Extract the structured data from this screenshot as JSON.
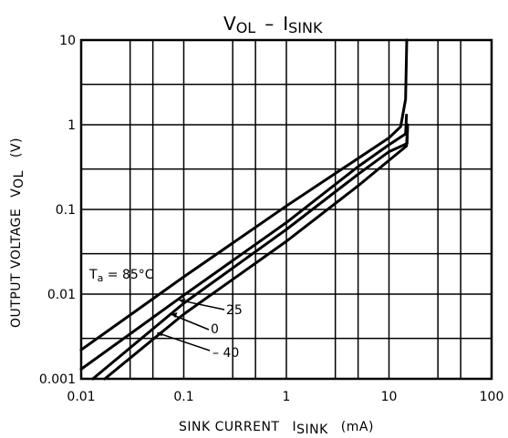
{
  "chart_data": {
    "type": "line",
    "title": {
      "main": "V",
      "sub1": "OL",
      "dash": "–",
      "main2": "I",
      "sub2": "SINK"
    },
    "xlabel": {
      "text": "SINK CURRENT",
      "sym": "I",
      "sub": "SINK",
      "unit": "(mA)"
    },
    "ylabel": {
      "text": "OUTPUT VOLTAGE",
      "sym": "V",
      "sub": "OL",
      "unit": "(V)"
    },
    "xscale": "log",
    "yscale": "log",
    "xlim": [
      0.01,
      100
    ],
    "ylim": [
      0.001,
      10
    ],
    "x_ticks": [
      "0.01",
      "0.1",
      "1",
      "10",
      "100"
    ],
    "y_ticks": [
      "0.001",
      "0.01",
      "0.1",
      "1",
      "10"
    ],
    "grid": true,
    "annotation": {
      "prefix": "T",
      "sub": "a",
      "suffix": " = 85°C"
    },
    "series": [
      {
        "name": "85",
        "points": [
          [
            0.01,
            0.0022
          ],
          [
            0.1,
            0.016
          ],
          [
            1,
            0.11
          ],
          [
            10,
            0.7
          ],
          [
            13,
            0.95
          ],
          [
            14.5,
            2.0
          ],
          [
            14.9,
            10
          ]
        ]
      },
      {
        "name": "25",
        "points": [
          [
            0.01,
            0.0013
          ],
          [
            0.1,
            0.0097
          ],
          [
            1,
            0.07
          ],
          [
            5,
            0.32
          ],
          [
            10,
            0.58
          ],
          [
            14.5,
            0.78
          ],
          [
            14.8,
            1.3
          ]
        ]
      },
      {
        "name": "0",
        "points": [
          [
            0.013,
            0.001
          ],
          [
            0.1,
            0.0078
          ],
          [
            1,
            0.058
          ],
          [
            5,
            0.26
          ],
          [
            10,
            0.48
          ],
          [
            15,
            0.6
          ],
          [
            15.2,
            1.0
          ]
        ]
      },
      {
        "name": "-40",
        "points": [
          [
            0.017,
            0.001
          ],
          [
            0.1,
            0.0058
          ],
          [
            1,
            0.042
          ],
          [
            5,
            0.19
          ],
          [
            10,
            0.38
          ],
          [
            14.8,
            0.56
          ],
          [
            15,
            0.75
          ]
        ]
      }
    ],
    "series_labels": [
      {
        "series": "25",
        "label": "25",
        "at": [
          0.09,
          0.0085
        ]
      },
      {
        "series": "0",
        "label": "0",
        "at": [
          0.075,
          0.0058
        ]
      },
      {
        "series": "-40",
        "label": "– 40",
        "at": [
          0.055,
          0.0035
        ]
      }
    ]
  }
}
